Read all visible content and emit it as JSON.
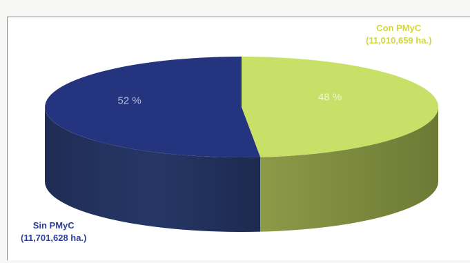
{
  "chart_data": {
    "type": "pie",
    "slices": [
      {
        "label": "Sin PMyC",
        "detail": "(11,701,628 ha.)",
        "value": 11701628,
        "percent_label": "52 %",
        "color": "#25347e",
        "side_color": "#1e2a4e"
      },
      {
        "label": "Con PMyC",
        "detail": "(11,010,659 ha.)",
        "value": 11010659,
        "percent_label": "48 %",
        "color": "#c8e068",
        "side_color": "#7d8a3e"
      }
    ],
    "style": "3d"
  }
}
